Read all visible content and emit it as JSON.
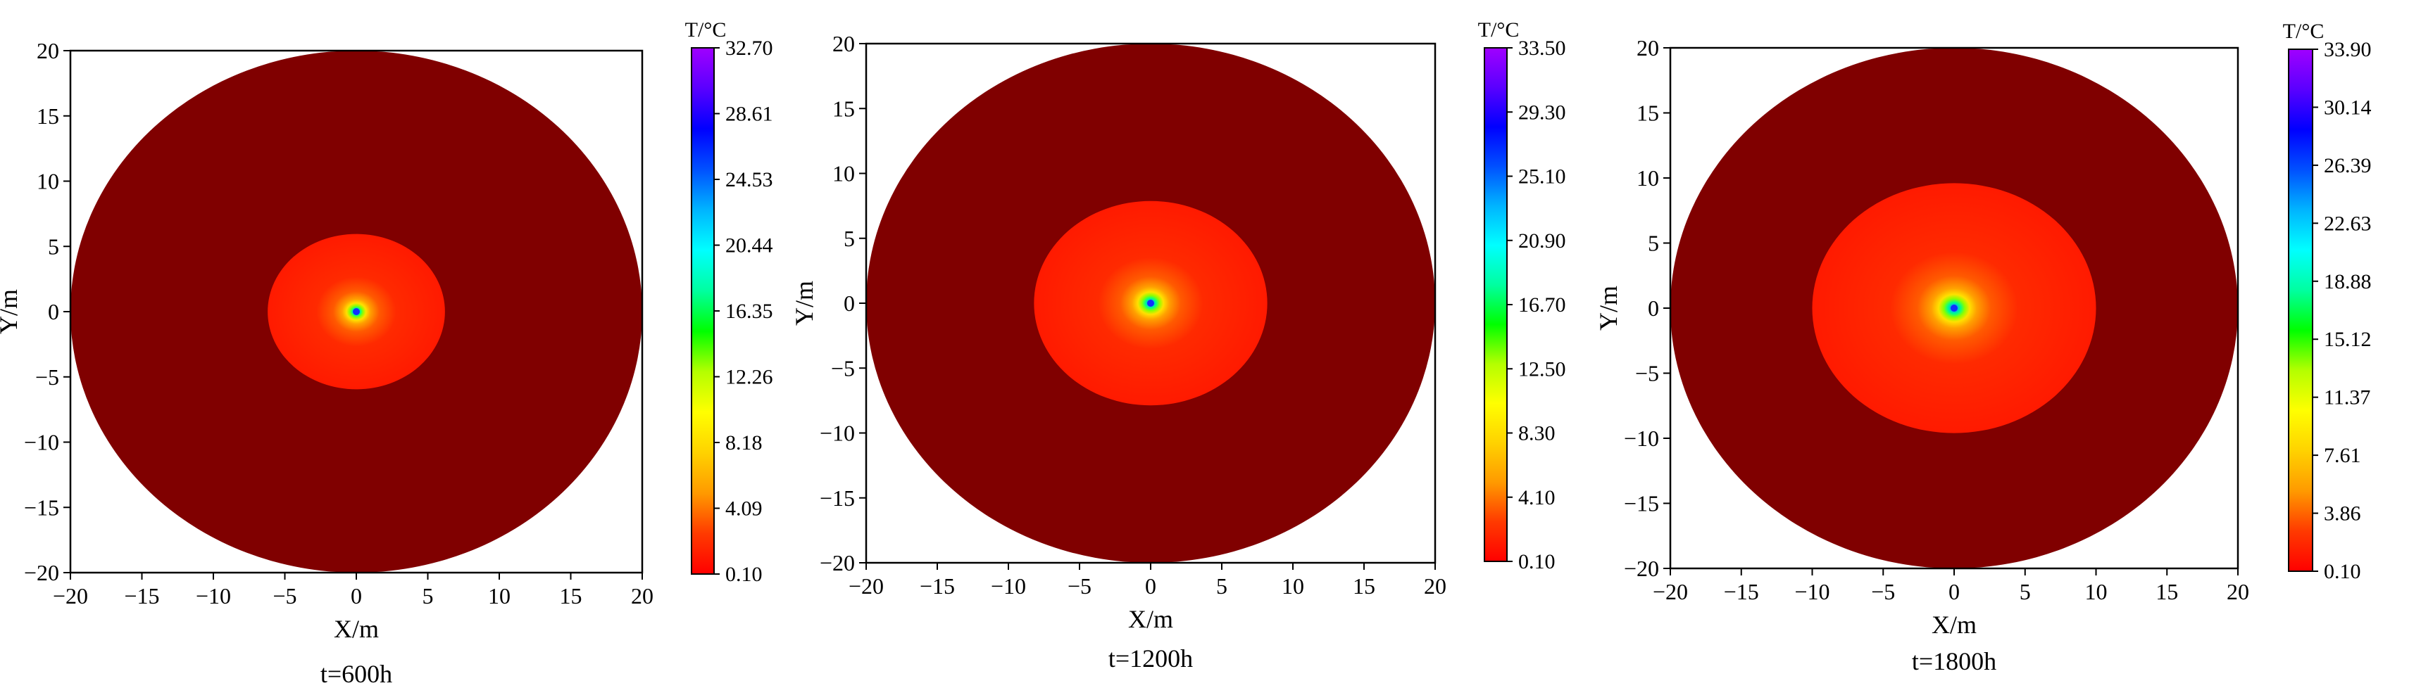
{
  "figure": {
    "colormap_stops": [
      "#ff0000",
      "#ff3a00",
      "#ff9a00",
      "#ffd200",
      "#ffff00",
      "#b4ff00",
      "#00ff00",
      "#00ffa0",
      "#00ffff",
      "#00b4ff",
      "#0050ff",
      "#0000ff",
      "#5a00ff",
      "#a000ff"
    ],
    "outside_color": "#800000"
  },
  "chart_data": [
    {
      "type": "heatmap",
      "title": "t=600h",
      "xlabel": "X/m",
      "ylabel": "Y/m",
      "xlim": [
        -20,
        20
      ],
      "ylim": [
        -20,
        20
      ],
      "xticks": [
        "−20",
        "−15",
        "−10",
        "−5",
        "0",
        "5",
        "10",
        "15",
        "20"
      ],
      "yticks": [
        "20",
        "15",
        "10",
        "5",
        "0",
        "−5",
        "−10",
        "−15",
        "−20"
      ],
      "domain_radius": 20,
      "heated_zone_radius": 6.2,
      "heated_zone_color": "#ff1a00",
      "heat_source": [
        0,
        0
      ],
      "colorbar": {
        "label": "T/°C",
        "min": 0.1,
        "max": 32.7,
        "ticks": [
          "32.70",
          "28.61",
          "24.53",
          "20.44",
          "16.35",
          "12.26",
          "8.18",
          "4.09",
          "0.10"
        ]
      }
    },
    {
      "type": "heatmap",
      "title": "t=1200h",
      "xlabel": "X/m",
      "ylabel": "Y/m",
      "xlim": [
        -20,
        20
      ],
      "ylim": [
        -20,
        20
      ],
      "xticks": [
        "−20",
        "−15",
        "−10",
        "−5",
        "0",
        "5",
        "10",
        "15",
        "20"
      ],
      "yticks": [
        "20",
        "15",
        "10",
        "5",
        "0",
        "−5",
        "−10",
        "−15",
        "−20"
      ],
      "domain_radius": 20,
      "heated_zone_radius": 8.2,
      "heated_zone_color": "#ff1a00",
      "heat_source": [
        0,
        0
      ],
      "colorbar": {
        "label": "T/°C",
        "min": 0.1,
        "max": 33.5,
        "ticks": [
          "33.50",
          "29.30",
          "25.10",
          "20.90",
          "16.70",
          "12.50",
          "8.30",
          "4.10",
          "0.10"
        ]
      }
    },
    {
      "type": "heatmap",
      "title": "t=1800h",
      "xlabel": "X/m",
      "ylabel": "Y/m",
      "xlim": [
        -20,
        20
      ],
      "ylim": [
        -20,
        20
      ],
      "xticks": [
        "−20",
        "−15",
        "−10",
        "−5",
        "0",
        "5",
        "10",
        "15",
        "20"
      ],
      "yticks": [
        "20",
        "15",
        "10",
        "5",
        "0",
        "−5",
        "−10",
        "−15",
        "−20"
      ],
      "domain_radius": 20,
      "heated_zone_radius": 10,
      "heated_zone_color": "#ff1a00",
      "heat_source": [
        0,
        0
      ],
      "colorbar": {
        "label": "T/°C",
        "min": 0.1,
        "max": 33.9,
        "ticks": [
          "33.90",
          "30.14",
          "26.39",
          "22.63",
          "18.88",
          "15.12",
          "11.37",
          "7.61",
          "3.86",
          "0.10"
        ]
      }
    }
  ]
}
